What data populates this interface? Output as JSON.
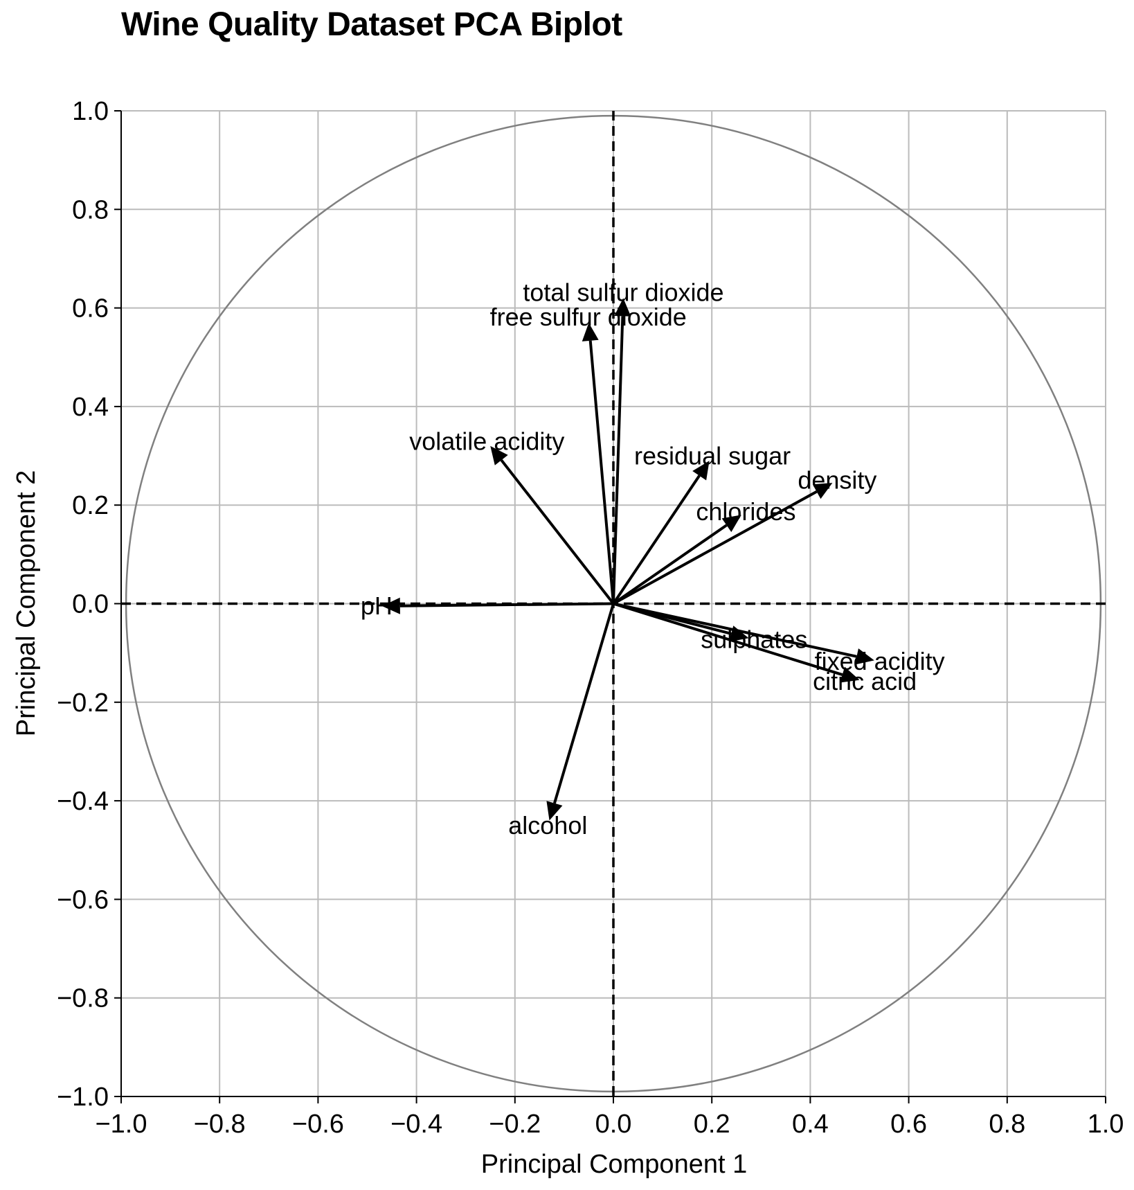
{
  "chart_data": {
    "type": "scatter",
    "subtype": "pca-biplot",
    "title": "Wine Quality Dataset PCA Biplot",
    "xlabel": "Principal Component 1",
    "ylabel": "Principal Component 2",
    "xlim": [
      -1.0,
      1.0
    ],
    "ylim": [
      -1.0,
      1.0
    ],
    "xticks": [
      "−1.0",
      "−0.8",
      "−0.6",
      "−0.4",
      "−0.2",
      "0.0",
      "0.2",
      "0.4",
      "0.6",
      "0.8",
      "1.0"
    ],
    "yticks": [
      "−1.0",
      "−0.8",
      "−0.6",
      "−0.4",
      "−0.2",
      "0.0",
      "0.2",
      "0.4",
      "0.6",
      "0.8",
      "1.0"
    ],
    "grid": true,
    "unit_circle": true,
    "reference_lines": "dashed lines at x = 0 and y = 0",
    "loadings": [
      {
        "name": "fixed acidity",
        "x": 0.53,
        "y": -0.115
      },
      {
        "name": "volatile acidity",
        "x": -0.25,
        "y": 0.32
      },
      {
        "name": "citric acid",
        "x": 0.5,
        "y": -0.155
      },
      {
        "name": "residual sugar",
        "x": 0.195,
        "y": 0.29
      },
      {
        "name": "chlorides",
        "x": 0.26,
        "y": 0.18
      },
      {
        "name": "free sulfur dioxide",
        "x": -0.05,
        "y": 0.57
      },
      {
        "name": "total sulfur dioxide",
        "x": 0.02,
        "y": 0.62
      },
      {
        "name": "density",
        "x": 0.445,
        "y": 0.245
      },
      {
        "name": "pH",
        "x": -0.47,
        "y": -0.005
      },
      {
        "name": "sulphates",
        "x": 0.275,
        "y": -0.07
      },
      {
        "name": "alcohol",
        "x": -0.13,
        "y": -0.44
      }
    ]
  },
  "colors": {
    "arrow": "#000000",
    "grid": "#bbbbbb",
    "circle": "#808080",
    "reference": "#000000"
  }
}
